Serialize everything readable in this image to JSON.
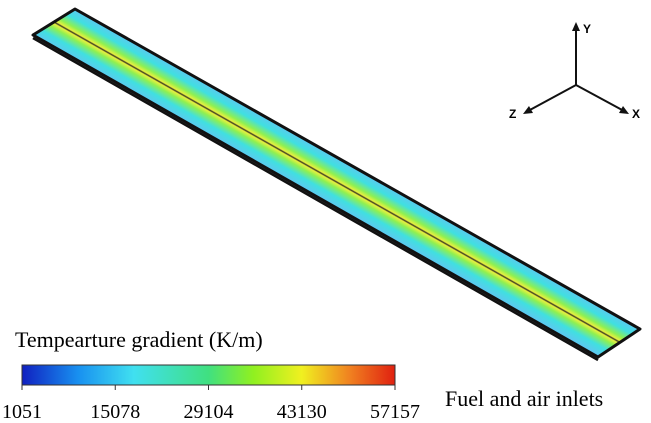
{
  "colorbar": {
    "title": "Tempearture gradient (K/m)",
    "ticks": [
      1051,
      15078,
      29104,
      43130,
      57157
    ]
  },
  "axes": {
    "y": "Y",
    "z": "Z",
    "x": "X"
  },
  "annotation": "Fuel and air inlets"
}
